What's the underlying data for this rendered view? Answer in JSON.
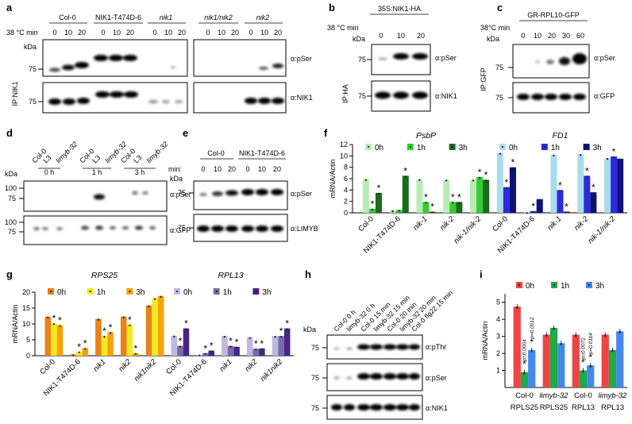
{
  "panels": {
    "a": {
      "letter": "a",
      "temp_label": "38 °C min",
      "kda": "kDa",
      "ip": "IP:NIK1",
      "genotypes": [
        "Col-0",
        "NIK1-T474D-6",
        "nik1",
        "nik1/nik2",
        "nik2"
      ],
      "times": [
        "0",
        "10",
        "20"
      ],
      "mw": [
        "75",
        "75"
      ],
      "blots": [
        "α:pSer",
        "α:NIK1"
      ]
    },
    "b": {
      "letter": "b",
      "construct": "35S:NIK1-HA",
      "temp_label": "38 °C min",
      "kda": "kDa",
      "ip": "IP:HA",
      "times": [
        "0",
        "10",
        "20"
      ],
      "mw": [
        "75",
        "75"
      ],
      "blots": [
        "α:pSer",
        "α:NIK1"
      ]
    },
    "c": {
      "letter": "c",
      "construct": "GR-RPL10-GFP",
      "temp_label": "38°C min",
      "kda": "kDa",
      "ip": "IP:GFP",
      "times": [
        "0",
        "10",
        "20",
        "30",
        "60"
      ],
      "mw": [
        "75",
        "75"
      ],
      "blots": [
        "α:pSer",
        "α:GFP"
      ]
    },
    "d": {
      "letter": "d",
      "lanes": [
        "Col-0",
        "L3",
        "limyb-32",
        "Col-0",
        "L3",
        "limyb-32",
        "Col-0",
        "L3",
        "limyb-32"
      ],
      "groups": [
        "0 h",
        "1 h",
        "3 h"
      ],
      "kda": "kDa",
      "mw": [
        "100",
        "75",
        "100",
        "75"
      ],
      "blots": [
        "α:pSer",
        "α:GFP"
      ]
    },
    "e": {
      "letter": "e",
      "genotypes": [
        "Col-0",
        "NIK1-T474D-6"
      ],
      "min_label": "min:",
      "times": [
        "0",
        "10",
        "20",
        "0",
        "10",
        "20"
      ],
      "kda": "kDa",
      "mw": [
        "75",
        "75"
      ],
      "blots": [
        "α:pSer",
        "α:LIMYB"
      ]
    },
    "h": {
      "letter": "h",
      "lanes": [
        "Col-0 0 h",
        "limyb-32 0 h",
        "Col-0 15 min",
        "limyb-32 15 min",
        "Col-0 20 min",
        "limyb-32 20 min",
        "Col-0 flg22 15 min"
      ],
      "kda": "kDa",
      "mw": [
        "75",
        "75",
        "75"
      ],
      "blots": [
        "α:pThr",
        "α:pSer",
        "α:NIK1"
      ]
    }
  },
  "chart_data": [
    {
      "panel": "f",
      "type": "bar",
      "ylabel": "mRNA/Actin",
      "ylim": [
        0,
        12
      ],
      "yticks": [
        "0",
        "2",
        "4",
        "6",
        "8",
        "10",
        "12"
      ],
      "groups": [
        {
          "title": "PsbP",
          "categories": [
            "Col-0",
            "NIK1-T474D-6",
            "nik-1",
            "nik-2",
            "nik-1/nik-2"
          ],
          "series": [
            {
              "name": "0h",
              "color": "#b7ecb7",
              "values": [
                5.9,
                0.4,
                5.9,
                5.8,
                5.8
              ]
            },
            {
              "name": "1h",
              "color": "#33cc33",
              "values": [
                0.7,
                0.5,
                1.9,
                1.9,
                6.3
              ]
            },
            {
              "name": "3h",
              "color": "#1a6b1a",
              "values": [
                3.5,
                6.5,
                0.2,
                1.9,
                5.8
              ]
            }
          ],
          "stars": [
            [
              false,
              true,
              true
            ],
            [
              false,
              false,
              true
            ],
            [
              false,
              true,
              true
            ],
            [
              false,
              true,
              true
            ],
            [
              false,
              true,
              true
            ]
          ]
        },
        {
          "title": "FD1",
          "categories": [
            "Col-0",
            "NIK1-T474D-6",
            "nik-1",
            "nik-2",
            "nik-1/nik-2"
          ],
          "series": [
            {
              "name": "0h",
              "color": "#a8dcec",
              "values": [
                10.5,
                0.1,
                10.2,
                10.3,
                9.6
              ]
            },
            {
              "name": "1h",
              "color": "#2b2bdd",
              "values": [
                4.5,
                0.3,
                4.0,
                6.5,
                9.9
              ]
            },
            {
              "name": "3h",
              "color": "#101078",
              "values": [
                8.0,
                2.4,
                0.2,
                3.6,
                9.5
              ]
            }
          ],
          "stars": [
            [
              false,
              true,
              true
            ],
            [
              false,
              true,
              false
            ],
            [
              false,
              true,
              true
            ],
            [
              false,
              true,
              true
            ],
            [
              false,
              true,
              false
            ]
          ]
        }
      ]
    },
    {
      "panel": "g",
      "type": "bar",
      "ylabel": "mRNA/Actin",
      "ylim": [
        0,
        20
      ],
      "yticks": [
        "0",
        "5",
        "10",
        "15",
        "20"
      ],
      "groups": [
        {
          "title": "RPS25",
          "categories": [
            "Col-0",
            "NIK1-T474D-6",
            "nik1",
            "nik2",
            "nik1nik2"
          ],
          "series": [
            {
              "name": "0h",
              "color": "#e8821a",
              "values": [
                12.3,
                0.4,
                11.6,
                12.3,
                15.8
              ]
            },
            {
              "name": "1h",
              "color": "#f2ea20",
              "values": [
                10.2,
                1.3,
                6.2,
                9.8,
                18.1
              ]
            },
            {
              "name": "3h",
              "color": "#f5a300",
              "values": [
                9.6,
                2.4,
                7.4,
                0.8,
                18.8
              ]
            }
          ],
          "stars": [
            [
              false,
              true,
              true
            ],
            [
              false,
              true,
              true
            ],
            [
              false,
              true,
              true
            ],
            [
              false,
              true,
              true
            ],
            [
              false,
              false,
              false
            ]
          ]
        },
        {
          "title": "RPL13",
          "categories": [
            "Col-0",
            "NIK1-T474D-6",
            "nik1",
            "nik2",
            "nik1nik2"
          ],
          "series": [
            {
              "name": "0h",
              "color": "#c0b8de",
              "values": [
                6.3,
                0.3,
                6.2,
                5.8,
                6.2
              ]
            },
            {
              "name": "1h",
              "color": "#7a6aaa",
              "values": [
                3.1,
                0.8,
                3.1,
                2.2,
                6.2
              ]
            },
            {
              "name": "3h",
              "color": "#4a2585",
              "values": [
                8.6,
                1.6,
                2.8,
                2.3,
                8.6
              ]
            }
          ],
          "stars": [
            [
              false,
              true,
              true
            ],
            [
              false,
              true,
              true
            ],
            [
              false,
              true,
              true
            ],
            [
              false,
              true,
              true
            ],
            [
              false,
              true,
              true
            ]
          ]
        }
      ]
    },
    {
      "panel": "i",
      "type": "bar",
      "ylabel": "mRNA/Actin",
      "ylim": [
        0,
        5.5
      ],
      "yticks": [
        "1",
        "2",
        "3",
        "4",
        "5"
      ],
      "categories": [
        "Col-0",
        "limyb-32",
        "Col-0",
        "limyb-32"
      ],
      "sublabels": [
        "RPLS25",
        "RPLS25",
        "RPL13",
        "RPL13"
      ],
      "series": [
        {
          "name": "0h",
          "color": "#ee4444",
          "values": [
            4.75,
            3.1,
            3.1,
            3.1
          ]
        },
        {
          "name": "1h",
          "color": "#22aa44",
          "values": [
            0.9,
            3.5,
            1.0,
            2.2
          ]
        },
        {
          "name": "3h",
          "color": "#4488ee",
          "values": [
            2.2,
            2.6,
            1.3,
            3.3
          ]
        }
      ],
      "pvalues": [
        [
          "",
          "p=0.0004",
          "p=0.0012"
        ],
        [
          "",
          "",
          ""
        ],
        [
          "",
          "p=0.0072",
          "p=0.0114"
        ],
        [
          "",
          "",
          ""
        ]
      ]
    }
  ],
  "panel_letters": {
    "f": "f",
    "g": "g",
    "i": "i"
  }
}
